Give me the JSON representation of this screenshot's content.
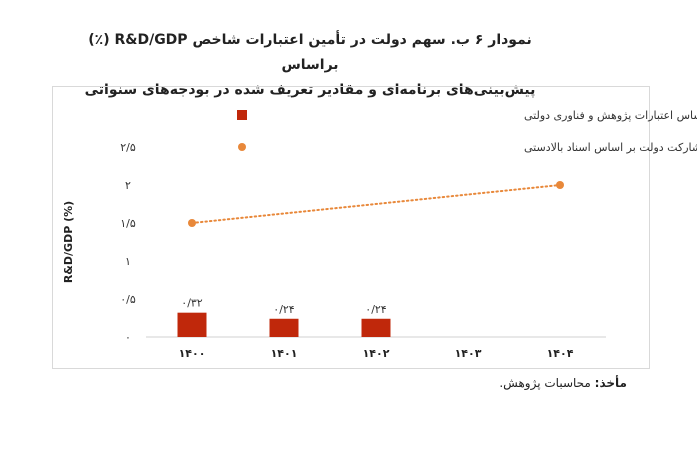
{
  "title_line1": "نمودار ۶ ب. سهم دولت در تأمین اعتبارات شاخص R&D/GDP (٪) براساس",
  "title_line2": "پیش‌بینی‌های برنامه‌ای و مقادیر تعریف شده در بودجه‌های سنواتی",
  "source_label": "مأخذ:",
  "source_text": "محاسبات پژوهش.",
  "chart_data": {
    "type": "bar",
    "categories": [
      "۱۴۰۰",
      "۱۴۰۱",
      "۱۴۰۲",
      "۱۴۰۳",
      "۱۴۰۴"
    ],
    "ylabel": "R&D/GDP (%)",
    "yticks": [
      "۰",
      "۰/۵",
      "۱",
      "۱/۵",
      "۲",
      "۲/۵"
    ],
    "ylim": [
      0,
      2.5
    ],
    "grid": false,
    "legend_position": "top-right",
    "bar_color": "#c0280b",
    "line_color": "#e8883a",
    "series": [
      {
        "name": "مقدار شاخص بر اساس اعتبارات پژوهش و فناوری دولتی",
        "type": "bar",
        "values": [
          0.32,
          0.24,
          0.24,
          null,
          null
        ],
        "labels": [
          "۰/۳۲",
          "۰/۲۴",
          "۰/۲۴",
          "",
          ""
        ]
      },
      {
        "name": "مقدار پیش بینی شده مشارکت دولت بر اساس اسناد بالادستی",
        "type": "line",
        "values": [
          1.5,
          null,
          null,
          null,
          2.0
        ]
      }
    ]
  }
}
